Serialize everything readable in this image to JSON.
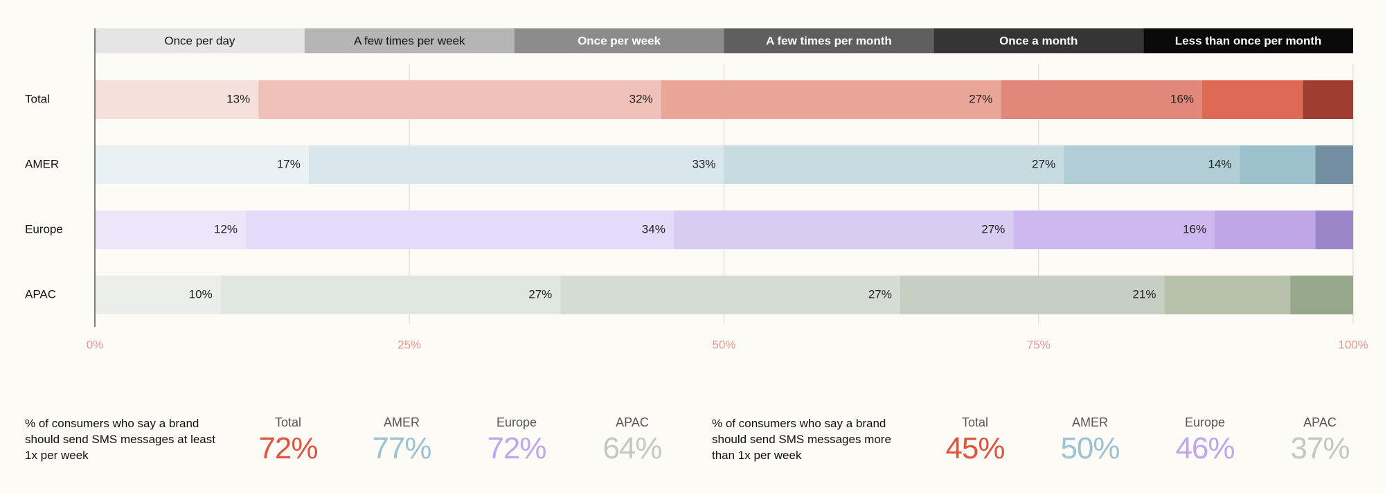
{
  "chart_data": {
    "type": "stacked-bar-horizontal",
    "categories": [
      "Total",
      "AMER",
      "Europe",
      "APAC"
    ],
    "category_colors": [
      [
        "#f6e0dc",
        "#f0c1b9",
        "#e9a598",
        "#e2887a",
        "#de6a56",
        "#a03d31"
      ],
      [
        "#e9f1f4",
        "#d9e6ec",
        "#c7dbe1",
        "#b1ced6",
        "#9cc0cc",
        "#7490a0"
      ],
      [
        "#ece6fa",
        "#e3dbf7",
        "#d9ccf2",
        "#cdb8f0",
        "#bfa6e7",
        "#9a86c8"
      ],
      [
        "#eceeec",
        "#e0e6e0",
        "#d5dcd3",
        "#c7cfc3",
        "#b8c1ac",
        "#97a78b"
      ]
    ],
    "series": [
      {
        "name": "Once per day",
        "color": "#e5e5e5",
        "values": [
          13,
          17,
          12,
          10
        ],
        "value_labels": [
          "13%",
          "17%",
          "12%",
          "10%"
        ]
      },
      {
        "name": "A few times per week",
        "color": "#b5b5b5",
        "values": [
          32,
          33,
          34,
          27
        ],
        "value_labels": [
          "32%",
          "33%",
          "34%",
          "27%"
        ]
      },
      {
        "name": "Once per week",
        "color": "#8c8c8c",
        "values": [
          27,
          27,
          27,
          27
        ],
        "value_labels": [
          "27%",
          "27%",
          "27%",
          "27%"
        ]
      },
      {
        "name": "A few times per month",
        "color": "#5f5f5f",
        "values": [
          16,
          14,
          16,
          21
        ],
        "value_labels": [
          "16%",
          "14%",
          "16%",
          "21%"
        ]
      },
      {
        "name": "Once a month",
        "color": "#353535",
        "values": [
          8,
          6,
          8,
          10
        ],
        "value_labels": [
          null,
          null,
          null,
          null
        ]
      },
      {
        "name": "Less than once per month",
        "color": "#0a0a0a",
        "values": [
          4,
          3,
          3,
          5
        ],
        "value_labels": [
          null,
          null,
          null,
          null
        ]
      }
    ],
    "xlim": [
      0,
      100
    ],
    "xticks": [
      {
        "value": 0,
        "label": "0%"
      },
      {
        "value": 25,
        "label": "25%"
      },
      {
        "value": 50,
        "label": "50%"
      },
      {
        "value": 75,
        "label": "75%"
      },
      {
        "value": 100,
        "label": "100%"
      }
    ],
    "grid": true
  },
  "summary": [
    {
      "description": "% of consumers who say a brand should send SMS messages at least 1x per week",
      "items": [
        {
          "region": "Total",
          "value": 72,
          "label": "72%",
          "color": "#e0553f"
        },
        {
          "region": "AMER",
          "value": 77,
          "label": "77%",
          "color": "#9cc3d3"
        },
        {
          "region": "Europe",
          "value": 72,
          "label": "72%",
          "color": "#bea7ee"
        },
        {
          "region": "APAC",
          "value": 64,
          "label": "64%",
          "color": "#c4c9bf"
        }
      ]
    },
    {
      "description": "% of consumers who say a brand should send SMS messages more than 1x per week",
      "items": [
        {
          "region": "Total",
          "value": 45,
          "label": "45%",
          "color": "#e0553f"
        },
        {
          "region": "AMER",
          "value": 50,
          "label": "50%",
          "color": "#9cc3d3"
        },
        {
          "region": "Europe",
          "value": 46,
          "label": "46%",
          "color": "#bea7ee"
        },
        {
          "region": "APAC",
          "value": 37,
          "label": "37%",
          "color": "#c4c9bf"
        }
      ]
    }
  ]
}
